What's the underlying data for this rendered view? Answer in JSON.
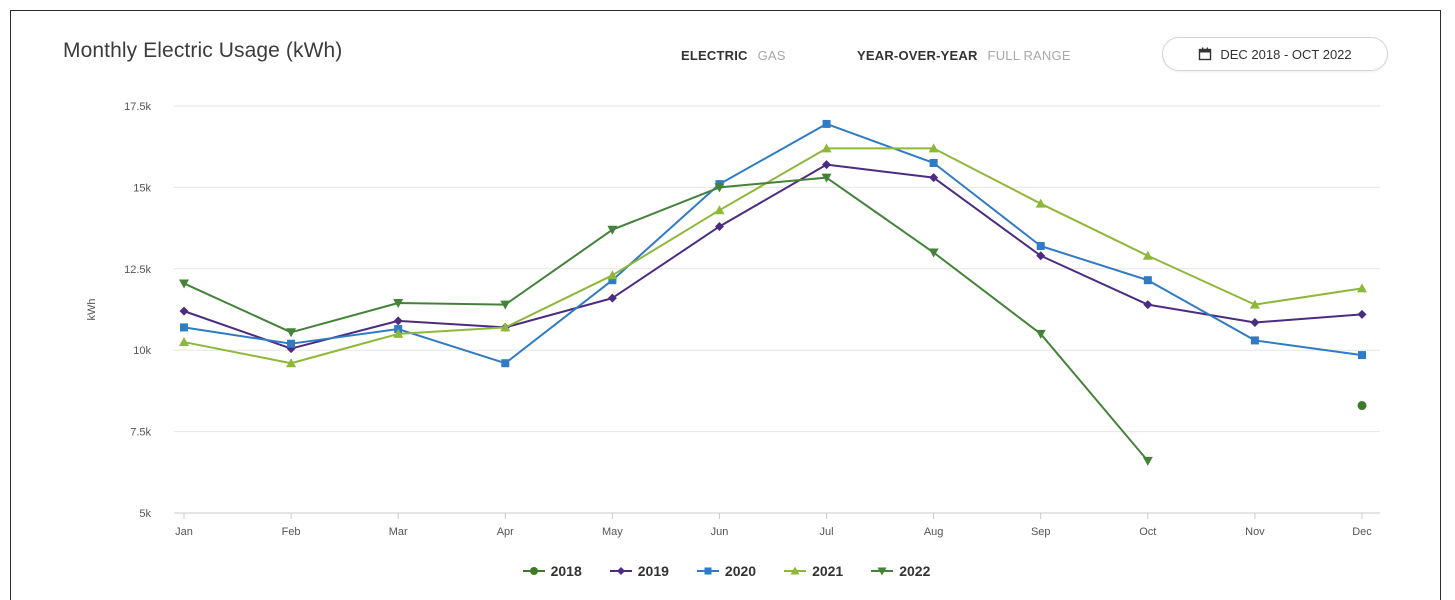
{
  "header": {
    "title": "Monthly Electric Usage (kWh)",
    "fuel_on": "ELECTRIC",
    "fuel_off": "GAS",
    "range_on": "YEAR-OVER-YEAR",
    "range_off": "FULL RANGE",
    "date_range": "DEC 2018 - OCT 2022"
  },
  "chart_data": {
    "type": "line",
    "title": "Monthly Electric Usage (kWh)",
    "xlabel": "",
    "ylabel": "kWh",
    "categories": [
      "Jan",
      "Feb",
      "Mar",
      "Apr",
      "May",
      "Jun",
      "Jul",
      "Aug",
      "Sep",
      "Oct",
      "Nov",
      "Dec"
    ],
    "ylim": [
      5000,
      17500
    ],
    "yticks": [
      5000,
      7500,
      10000,
      12500,
      15000,
      17500
    ],
    "ytick_labels": [
      "5k",
      "7.5k",
      "10k",
      "12.5k",
      "15k",
      "17.5k"
    ],
    "grid": true,
    "legend_position": "bottom-center",
    "series": [
      {
        "name": "2018",
        "color": "#3d7a2c",
        "marker": "circle",
        "values": [
          null,
          null,
          null,
          null,
          null,
          null,
          null,
          null,
          null,
          null,
          null,
          8300
        ]
      },
      {
        "name": "2019",
        "color": "#4b2c82",
        "marker": "diamond",
        "values": [
          11200,
          10050,
          10900,
          10700,
          11600,
          13800,
          15700,
          15300,
          12900,
          11400,
          10850,
          11100
        ]
      },
      {
        "name": "2020",
        "color": "#2f7bc4",
        "marker": "square",
        "values": [
          10700,
          10200,
          10650,
          9600,
          12150,
          15100,
          16950,
          15750,
          13200,
          12150,
          10300,
          9850
        ]
      },
      {
        "name": "2021",
        "color": "#8db83a",
        "marker": "triangle",
        "values": [
          10250,
          9600,
          10500,
          10700,
          12300,
          14300,
          16200,
          16200,
          14500,
          12900,
          11400,
          11900
        ]
      },
      {
        "name": "2022",
        "color": "#44823a",
        "marker": "triangle-down",
        "values": [
          12050,
          10550,
          11450,
          11400,
          13700,
          15000,
          15300,
          13000,
          10500,
          6600,
          null,
          null
        ]
      }
    ]
  }
}
